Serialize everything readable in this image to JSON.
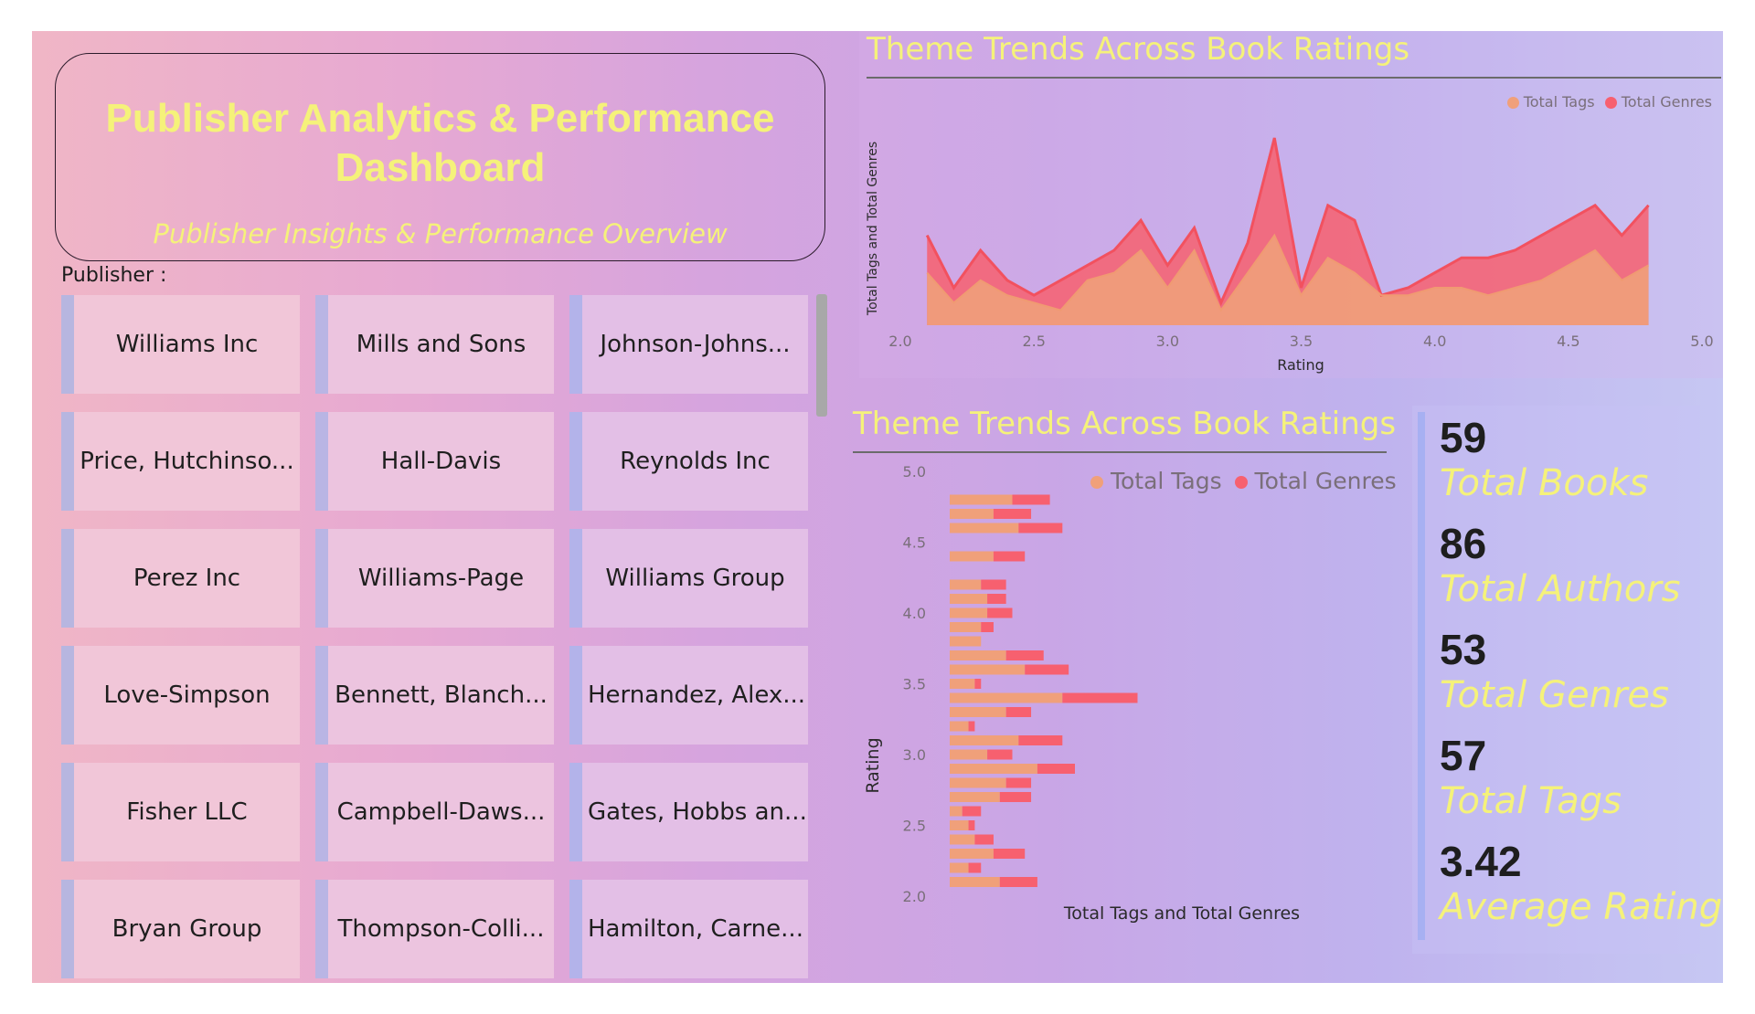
{
  "header": {
    "title": "Publisher Analytics & Performance Dashboard",
    "subtitle": "Publisher Insights & Performance Overview"
  },
  "slicer": {
    "label": "Publisher :",
    "items": [
      "Williams Inc",
      "Mills and Sons",
      "Johnson-Johns...",
      "Price, Hutchinso...",
      "Hall-Davis",
      "Reynolds Inc",
      "Perez Inc",
      "Williams-Page",
      "Williams Group",
      "Love-Simpson",
      "Bennett, Blanch...",
      "Hernandez, Alex...",
      "Fisher LLC",
      "Campbell-Daws...",
      "Gates, Hobbs an...",
      "Bryan Group",
      "Thompson-Colli...",
      "Hamilton, Carne..."
    ]
  },
  "colors": {
    "tags": "#f0a07a",
    "genres": "#f7606f",
    "title_yellow": "#f5f27a"
  },
  "area_chart": {
    "title": "Theme Trends Across Book Ratings",
    "legend": [
      "Total Tags",
      "Total Genres"
    ]
  },
  "bar_chart": {
    "title": "Theme Trends Across Book Ratings",
    "legend": [
      "Total Tags",
      "Total Genres"
    ]
  },
  "kpis": [
    {
      "value": "59",
      "label": "Total Books"
    },
    {
      "value": "86",
      "label": "Total Authors"
    },
    {
      "value": "53",
      "label": "Total Genres"
    },
    {
      "value": "57",
      "label": "Total Tags"
    },
    {
      "value": "3.42",
      "label": "Average Rating"
    }
  ],
  "chart_data": [
    {
      "type": "area",
      "title": "Theme Trends Across Book Ratings",
      "xlabel": "Rating",
      "ylabel": "Total Tags and Total Genres",
      "xlim": [
        2.0,
        5.0
      ],
      "x_ticks": [
        "2.0",
        "2.5",
        "3.0",
        "3.5",
        "4.0",
        "4.5",
        "5.0"
      ],
      "legend": "top-right",
      "x": [
        2.1,
        2.2,
        2.3,
        2.4,
        2.5,
        2.6,
        2.7,
        2.8,
        2.9,
        3.0,
        3.1,
        3.2,
        3.3,
        3.4,
        3.5,
        3.6,
        3.7,
        3.8,
        3.9,
        4.0,
        4.1,
        4.2,
        4.3,
        4.4,
        4.5,
        4.6,
        4.7,
        4.8
      ],
      "series": [
        {
          "name": "Total Tags",
          "values": [
            7,
            3,
            6,
            4,
            3,
            2,
            6,
            7,
            10,
            5,
            10,
            2,
            7,
            12,
            4,
            9,
            7,
            4,
            4,
            5,
            5,
            4,
            5,
            6,
            8,
            10,
            6,
            8
          ]
        },
        {
          "name": "Total Genres",
          "values": [
            5,
            2,
            4,
            2,
            1,
            4,
            2,
            3,
            4,
            3,
            3,
            1,
            4,
            13,
            1,
            7,
            7,
            0,
            1,
            2,
            4,
            5,
            5,
            6,
            6,
            6,
            6,
            8
          ]
        }
      ]
    },
    {
      "type": "bar",
      "orientation": "horizontal",
      "stacked": true,
      "title": "Theme Trends Across Book Ratings",
      "xlabel": "Total Tags and Total Genres",
      "ylabel": "Rating",
      "ylim": [
        2.0,
        5.0
      ],
      "y_ticks": [
        "2.0",
        "2.5",
        "3.0",
        "3.5",
        "4.0",
        "4.5",
        "5.0"
      ],
      "legend": "top-right",
      "categories": [
        4.8,
        4.7,
        4.6,
        4.4,
        4.2,
        4.1,
        4.0,
        3.9,
        3.8,
        3.7,
        3.6,
        3.5,
        3.4,
        3.3,
        3.2,
        3.1,
        3.0,
        2.9,
        2.8,
        2.7,
        2.6,
        2.5,
        2.4,
        2.3,
        2.2,
        2.1
      ],
      "series": [
        {
          "name": "Total Tags",
          "values": [
            10,
            7,
            11,
            7,
            5,
            6,
            6,
            5,
            5,
            9,
            12,
            4,
            18,
            9,
            3,
            11,
            6,
            14,
            9,
            8,
            2,
            3,
            4,
            7,
            3,
            8
          ]
        },
        {
          "name": "Total Genres",
          "values": [
            6,
            6,
            7,
            5,
            4,
            3,
            4,
            2,
            0,
            6,
            7,
            1,
            12,
            4,
            1,
            7,
            4,
            6,
            4,
            5,
            3,
            1,
            3,
            5,
            2,
            6
          ]
        }
      ]
    }
  ]
}
